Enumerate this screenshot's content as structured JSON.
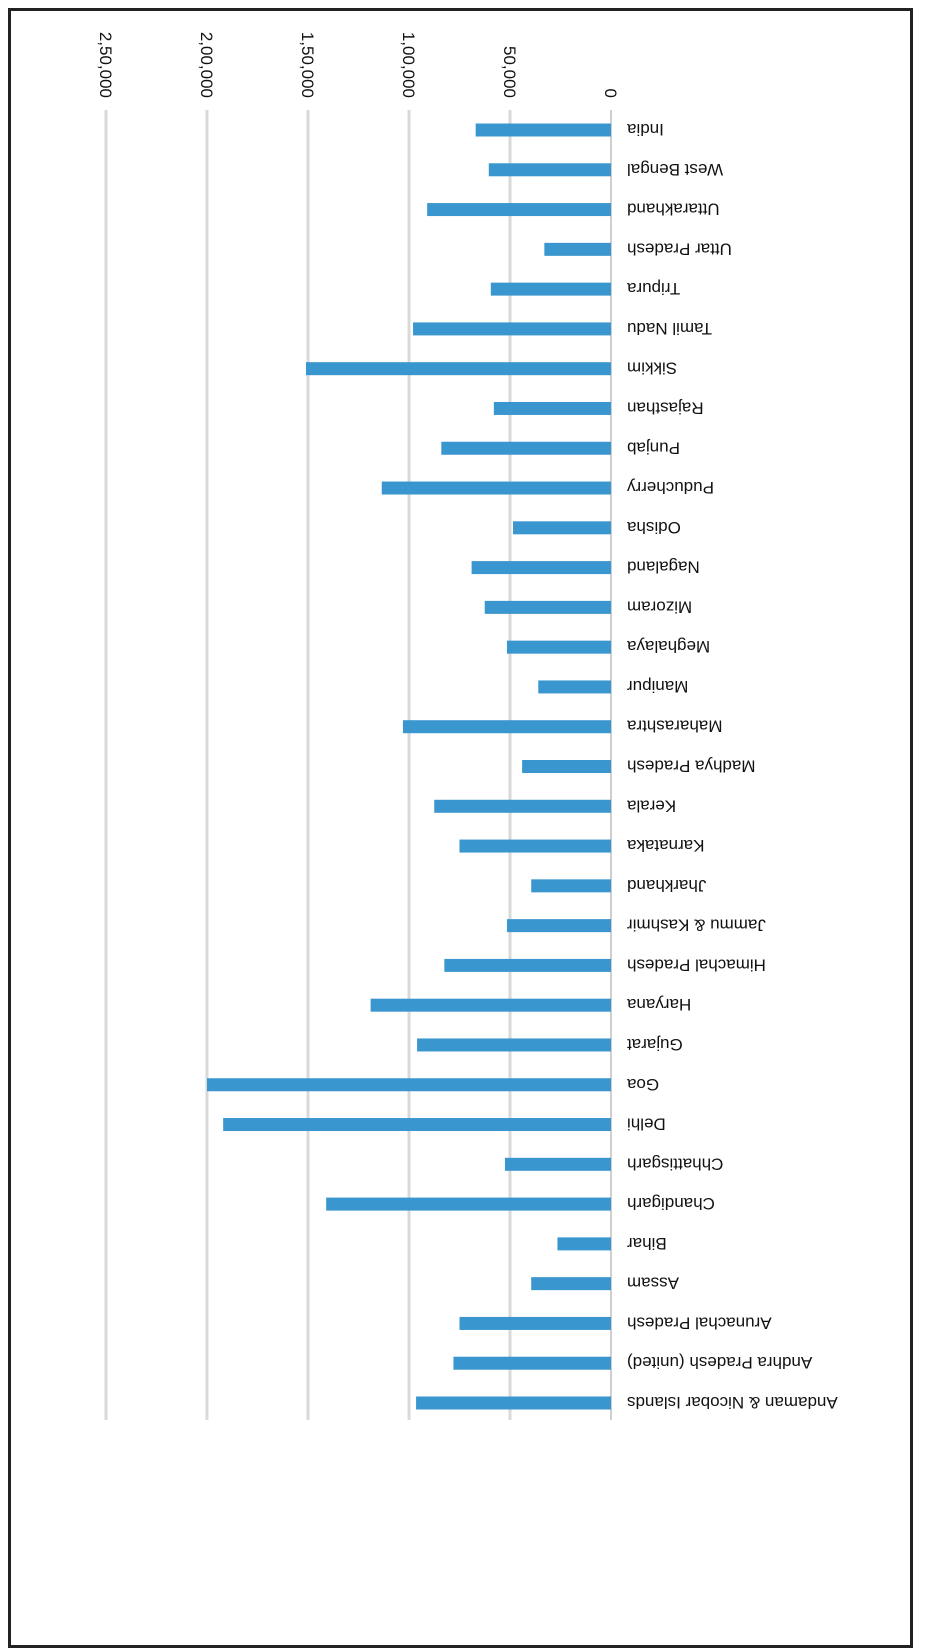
{
  "chart_data": {
    "type": "bar",
    "orientation": "horizontal",
    "categories": [
      "Andaman & Nicobar Islands",
      "Andhra Pradesh (united)",
      "Arunachal Pradesh",
      "Assam",
      "Bihar",
      "Chandigarh",
      "Chhattisgarh",
      "Delhi",
      "Goa",
      "Gujarat",
      "Haryana",
      "Himachal Pradesh",
      "Jammu & Kashmir",
      "Jharkhand",
      "Karnataka",
      "Kerala",
      "Madhya Pradesh",
      "Maharashtra",
      "Manipur",
      "Meghalaya",
      "Mizoram",
      "Nagaland",
      "Odisha",
      "Puducherry",
      "Punjab",
      "Rajasthan",
      "Sikkim",
      "Tamil Nadu",
      "Tripura",
      "Uttar Pradesh",
      "Uttarakhand",
      "West Bengal",
      "India"
    ],
    "values": [
      96500,
      78000,
      75000,
      39500,
      26500,
      141000,
      52500,
      192000,
      200000,
      96000,
      119000,
      82500,
      51500,
      39500,
      75000,
      87500,
      44000,
      103000,
      36000,
      51500,
      62500,
      69000,
      48500,
      113500,
      84000,
      58000,
      151000,
      98000,
      59500,
      33000,
      91000,
      60500,
      67000
    ],
    "tick_labels": [
      "0",
      "50,000",
      "1,00,000",
      "1,50,000",
      "2,00,000",
      "2,50,000"
    ],
    "ticks": [
      0,
      50000,
      100000,
      150000,
      200000,
      250000
    ],
    "xlim": [
      0,
      250000
    ],
    "grid": true,
    "rotation": "rotated 180 degrees (upside down)",
    "colors": {
      "bar": "#3a96ce",
      "grid": "#d9d9d9",
      "axis": "#bfbfbf",
      "text": "#111111"
    }
  }
}
